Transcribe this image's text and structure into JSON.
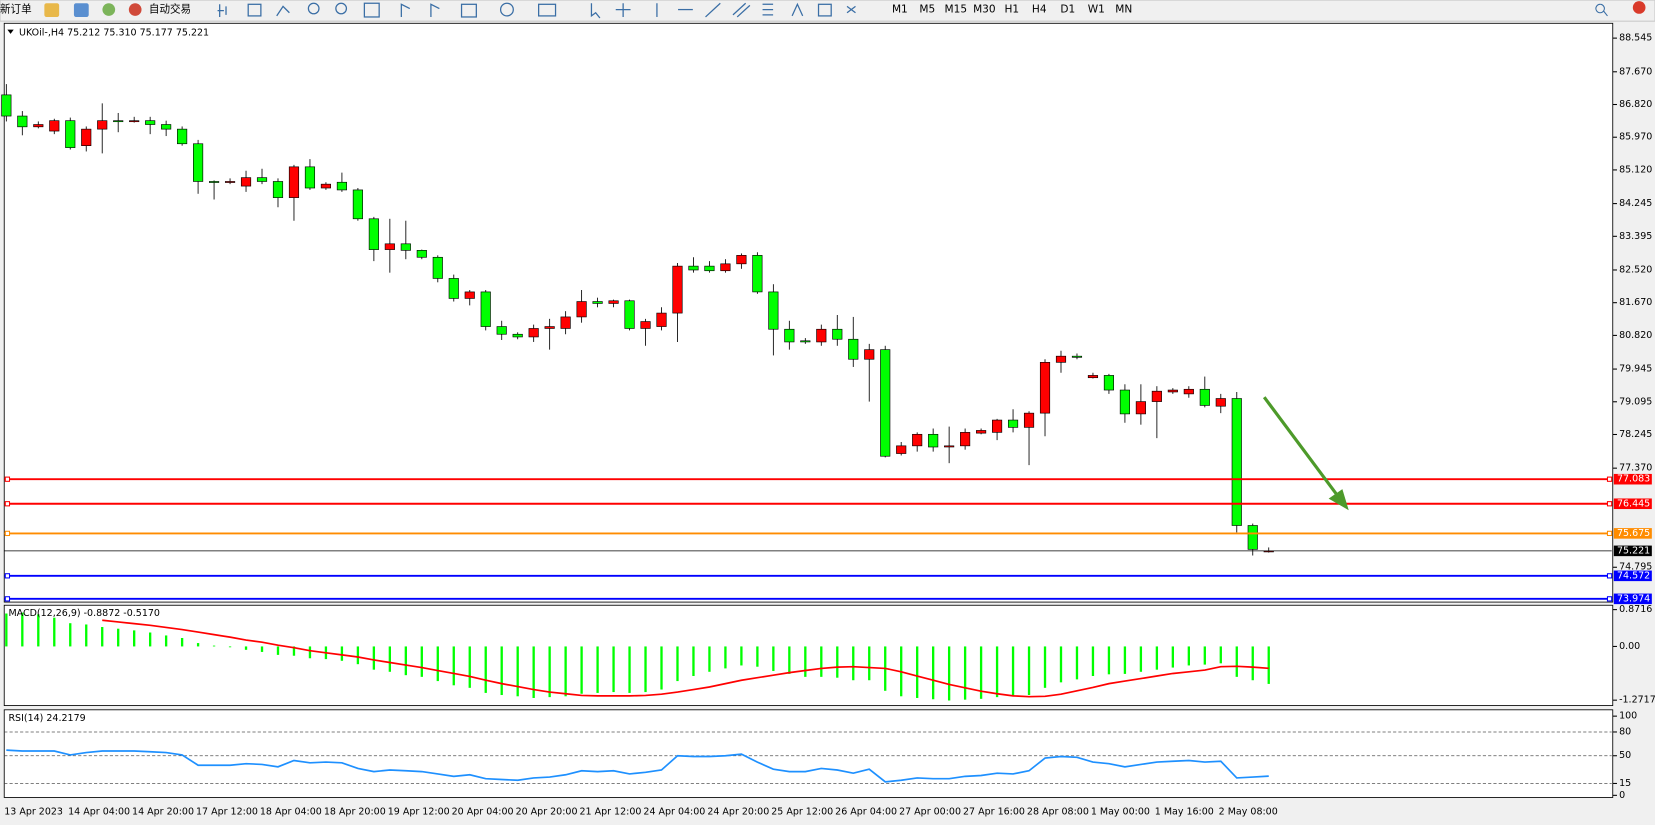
{
  "toolbar": {
    "new_order": "新订单",
    "auto_trading": "自动交易",
    "timeframes": [
      "M1",
      "M5",
      "M15",
      "M30",
      "H1",
      "H4",
      "D1",
      "W1",
      "MN"
    ]
  },
  "chart_data": [
    {
      "type": "candlestick",
      "title": "UKOil-,H4  75.212 75.310 75.177 75.221",
      "categories": [
        "13 Apr 2023",
        null,
        null,
        null,
        "14 Apr 04:00",
        null,
        null,
        null,
        "14 Apr 20:00",
        null,
        null,
        null,
        "17 Apr 12:00",
        null,
        null,
        null,
        "18 Apr 04:00",
        null,
        null,
        null,
        "18 Apr 20:00",
        null,
        null,
        null,
        "19 Apr 12:00",
        null,
        null,
        null,
        "20 Apr 04:00",
        null,
        null,
        null,
        "20 Apr 20:00",
        null,
        null,
        null,
        "21 Apr 12:00",
        null,
        null,
        null,
        "24 Apr 04:00",
        null,
        null,
        null,
        "24 Apr 20:00",
        null,
        null,
        null,
        "25 Apr 12:00",
        null,
        null,
        null,
        "26 Apr 04:00",
        null,
        null,
        null,
        "27 Apr 00:00",
        null,
        null,
        null,
        "27 Apr 16:00",
        null,
        null,
        null,
        "28 Apr 08:00",
        null,
        null,
        null,
        "1 May 00:00",
        null,
        null,
        null,
        "1 May 16:00",
        null,
        null,
        null,
        "2 May 08:00",
        null,
        null,
        null
      ],
      "open": [
        87.07,
        86.52,
        86.24,
        86.13,
        86.4,
        85.75,
        86.18,
        86.4,
        86.38,
        86.4,
        86.3,
        86.18,
        85.8,
        84.82,
        84.8,
        84.7,
        84.92,
        84.82,
        84.4,
        85.2,
        84.65,
        84.8,
        84.6,
        83.85,
        83.05,
        83.2,
        83.03,
        82.85,
        82.3,
        81.78,
        81.95,
        81.05,
        80.85,
        80.78,
        81.0,
        81.0,
        81.3,
        81.7,
        81.65,
        81.72,
        81.0,
        81.05,
        81.4,
        82.62,
        82.62,
        82.5,
        82.68,
        82.9,
        81.95,
        80.98,
        80.68,
        80.65,
        80.98,
        80.72,
        80.2,
        80.45,
        77.75,
        77.95,
        78.25,
        77.92,
        77.95,
        78.28,
        78.3,
        78.62,
        78.43,
        78.8,
        80.12,
        80.28,
        79.72,
        79.78,
        79.4,
        78.78,
        79.1,
        79.35,
        79.3,
        79.42,
        78.98,
        79.18,
        75.88,
        75.212
      ],
      "high": [
        87.35,
        86.65,
        86.38,
        86.45,
        86.48,
        86.25,
        86.85,
        86.6,
        86.5,
        86.5,
        86.4,
        86.25,
        85.9,
        84.85,
        84.9,
        85.1,
        85.15,
        84.9,
        85.25,
        85.4,
        84.8,
        85.05,
        84.65,
        83.9,
        83.85,
        83.8,
        83.05,
        82.9,
        82.4,
        82.0,
        82.0,
        81.2,
        80.9,
        81.1,
        81.25,
        81.45,
        82.0,
        81.8,
        81.75,
        81.75,
        81.25,
        81.55,
        82.7,
        82.85,
        82.75,
        82.8,
        82.95,
        82.98,
        82.15,
        81.2,
        80.75,
        81.1,
        81.35,
        81.3,
        80.6,
        80.55,
        78.05,
        78.3,
        78.4,
        78.45,
        78.4,
        78.4,
        78.65,
        78.9,
        78.85,
        80.2,
        80.42,
        80.35,
        79.85,
        79.82,
        79.55,
        79.55,
        79.5,
        79.45,
        79.5,
        79.75,
        79.3,
        79.35,
        75.93,
        75.31
      ],
      "low": [
        86.38,
        86.02,
        86.2,
        86.05,
        85.65,
        85.6,
        85.55,
        86.1,
        86.35,
        86.05,
        86.0,
        85.75,
        84.5,
        84.35,
        84.75,
        84.55,
        84.75,
        84.15,
        83.8,
        84.6,
        84.6,
        84.55,
        83.8,
        82.75,
        82.45,
        82.8,
        82.8,
        82.2,
        81.7,
        81.6,
        80.95,
        80.7,
        80.72,
        80.65,
        80.45,
        80.85,
        81.15,
        81.55,
        81.55,
        80.95,
        80.55,
        80.95,
        80.65,
        82.45,
        82.45,
        82.45,
        82.55,
        81.9,
        80.3,
        80.45,
        80.6,
        80.55,
        80.55,
        80.0,
        79.1,
        77.65,
        77.7,
        77.8,
        77.8,
        77.5,
        77.85,
        78.25,
        78.1,
        78.3,
        77.45,
        78.2,
        79.85,
        80.2,
        79.7,
        79.3,
        78.55,
        78.5,
        78.15,
        79.3,
        79.2,
        78.95,
        78.8,
        75.7,
        75.1,
        75.177
      ],
      "close": [
        86.52,
        86.24,
        86.3,
        86.4,
        85.7,
        86.18,
        86.4,
        86.38,
        86.4,
        86.3,
        86.18,
        85.8,
        84.82,
        84.8,
        84.82,
        84.92,
        84.82,
        84.4,
        85.2,
        84.65,
        84.75,
        84.6,
        83.85,
        83.05,
        83.2,
        83.03,
        82.85,
        82.3,
        81.78,
        81.95,
        81.05,
        80.85,
        80.78,
        81.0,
        81.05,
        81.3,
        81.7,
        81.65,
        81.72,
        81.0,
        81.18,
        81.4,
        82.62,
        82.52,
        82.5,
        82.68,
        82.9,
        81.95,
        80.98,
        80.65,
        80.65,
        80.98,
        80.72,
        80.2,
        80.45,
        77.68,
        77.95,
        78.25,
        77.92,
        77.95,
        78.3,
        78.35,
        78.62,
        78.43,
        78.8,
        80.12,
        80.28,
        80.25,
        79.78,
        79.4,
        78.78,
        79.1,
        79.37,
        79.4,
        79.42,
        79.0,
        79.18,
        75.88,
        75.26,
        75.221
      ],
      "up_color": "#ff0000",
      "down_color": "#00ff00",
      "ylim": [
        73.89,
        88.93
      ],
      "yticks": [
        88.545,
        {
          "value": 87.67,
          "label": "87.670"
        },
        {
          "value": 86.82,
          "label": "86.820"
        },
        {
          "value": 85.97,
          "label": "85.970"
        },
        {
          "value": 85.12,
          "label": "85.120"
        },
        84.245,
        83.395,
        {
          "value": 82.52,
          "label": "82.520"
        },
        {
          "value": 81.67,
          "label": "81.670"
        },
        {
          "value": 80.82,
          "label": "80.820"
        },
        79.945,
        79.095,
        78.245,
        {
          "value": 77.37,
          "label": "77.370"
        },
        74.795
      ],
      "hlines": [
        {
          "value": 77.083,
          "color": "#ff0000"
        },
        {
          "value": 76.445,
          "color": "#ff0000"
        },
        {
          "value": 75.675,
          "color": "#ff8c00"
        },
        {
          "value": 75.221,
          "color": "#000000"
        },
        {
          "value": 74.572,
          "color": "#0000ff"
        },
        {
          "value": 73.974,
          "color": "#0000ff"
        }
      ]
    },
    {
      "type": "macd",
      "title": "MACD(12,26,9) -0.8872 -0.5170",
      "histogram": {
        "color": "#00ff00",
        "values": [
          0.78,
          0.8,
          0.76,
          0.68,
          0.55,
          0.52,
          0.46,
          0.42,
          0.38,
          0.33,
          0.26,
          0.2,
          0.08,
          0.02,
          -0.02,
          -0.08,
          -0.13,
          -0.2,
          -0.22,
          -0.28,
          -0.3,
          -0.34,
          -0.42,
          -0.55,
          -0.6,
          -0.68,
          -0.72,
          -0.82,
          -0.92,
          -0.98,
          -1.1,
          -1.15,
          -1.18,
          -1.22,
          -1.2,
          -1.18,
          -1.12,
          -1.1,
          -1.08,
          -1.1,
          -1.08,
          -1.02,
          -0.82,
          -0.7,
          -0.6,
          -0.52,
          -0.45,
          -0.48,
          -0.58,
          -0.65,
          -0.72,
          -0.72,
          -0.74,
          -0.8,
          -0.8,
          -1.05,
          -1.18,
          -1.22,
          -1.25,
          -1.28,
          -1.26,
          -1.24,
          -1.2,
          -1.18,
          -1.15,
          -0.98,
          -0.85,
          -0.78,
          -0.7,
          -0.66,
          -0.65,
          -0.6,
          -0.55,
          -0.5,
          -0.45,
          -0.43,
          -0.4,
          -0.72,
          -0.8,
          -0.8872
        ]
      },
      "signal": {
        "color": "#ff0000",
        "values": [
          null,
          null,
          null,
          null,
          null,
          null,
          0.62,
          0.58,
          0.54,
          0.5,
          0.45,
          0.4,
          0.34,
          0.28,
          0.22,
          0.15,
          0.1,
          0.03,
          -0.03,
          -0.1,
          -0.15,
          -0.2,
          -0.25,
          -0.32,
          -0.38,
          -0.44,
          -0.5,
          -0.57,
          -0.64,
          -0.71,
          -0.8,
          -0.88,
          -0.95,
          -1.02,
          -1.08,
          -1.12,
          -1.16,
          -1.17,
          -1.17,
          -1.17,
          -1.16,
          -1.13,
          -1.08,
          -1.02,
          -0.96,
          -0.88,
          -0.8,
          -0.74,
          -0.68,
          -0.62,
          -0.57,
          -0.52,
          -0.49,
          -0.48,
          -0.5,
          -0.52,
          -0.6,
          -0.7,
          -0.8,
          -0.9,
          -0.98,
          -1.06,
          -1.12,
          -1.17,
          -1.19,
          -1.18,
          -1.13,
          -1.05,
          -0.97,
          -0.88,
          -0.82,
          -0.76,
          -0.7,
          -0.64,
          -0.6,
          -0.56,
          -0.48,
          -0.47,
          -0.49,
          -0.517
        ]
      },
      "ylim": [
        -1.4,
        0.975
      ],
      "yticks": [
        0.8716,
        {
          "value": 0,
          "label": "0.00"
        },
        -1.2717
      ]
    },
    {
      "type": "line",
      "title": "RSI(14) 24.2179",
      "color": "#1e90ff",
      "values": [
        57,
        56,
        56,
        56,
        51,
        54,
        56,
        56,
        56,
        55,
        54,
        51,
        38,
        38,
        38,
        40,
        39,
        36,
        44,
        41,
        42,
        41,
        34,
        30,
        32,
        31,
        30,
        27,
        24,
        26,
        21,
        20,
        19,
        22,
        23,
        26,
        31,
        30,
        31,
        27,
        29,
        32,
        50,
        49,
        49,
        50,
        52,
        42,
        33,
        30,
        30,
        34,
        32,
        28,
        33,
        17,
        19,
        22,
        21,
        21,
        24,
        25,
        28,
        27,
        31,
        47,
        49,
        48,
        42,
        40,
        36,
        39,
        42,
        43,
        44,
        42,
        43,
        22,
        23,
        24.2179
      ],
      "ylim": [
        -2.7,
        108
      ],
      "yticks": [
        100,
        80,
        50,
        15,
        0
      ]
    }
  ]
}
